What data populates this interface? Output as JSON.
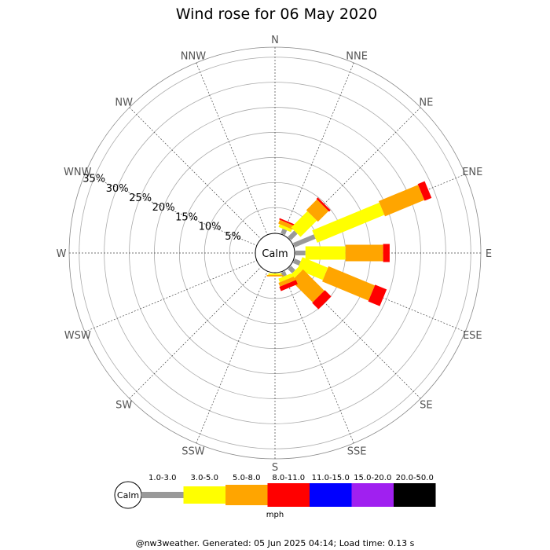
{
  "chart_data": {
    "type": "wind-rose",
    "title": "Wind rose for 06 May 2020",
    "directions": [
      "N",
      "NNE",
      "NE",
      "ENE",
      "E",
      "ESE",
      "SE",
      "SSE",
      "S",
      "SSW",
      "SW",
      "WSW",
      "W",
      "WNW",
      "NW",
      "NNW"
    ],
    "radial_ticks": [
      "5%",
      "10%",
      "15%",
      "20%",
      "25%",
      "30%",
      "35%"
    ],
    "radial_max_percent": 37,
    "center_label": "Calm",
    "unit": "mph",
    "speed_bins": [
      {
        "label": "1.0-3.0",
        "color": "#999999"
      },
      {
        "label": "3.0-5.0",
        "color": "#ffff00"
      },
      {
        "label": "5.0-8.0",
        "color": "#ffa500"
      },
      {
        "label": "8.0-11.0",
        "color": "#ff0000"
      },
      {
        "label": "11.0-15.0",
        "color": "#0000ff"
      },
      {
        "label": "15.0-20.0",
        "color": "#a020f0"
      },
      {
        "label": "20.0-50.0",
        "color": "#000000"
      }
    ],
    "series": [
      {
        "direction": "N",
        "values": [
          0.0,
          0.0,
          0.0,
          0.0,
          0,
          0,
          0
        ]
      },
      {
        "direction": "NNE",
        "values": [
          1.0,
          0.6,
          0.8,
          0.3,
          0,
          0,
          0
        ]
      },
      {
        "direction": "NE",
        "values": [
          1.8,
          4.6,
          3.0,
          0.4,
          0,
          0,
          0
        ]
      },
      {
        "direction": "ENE",
        "values": [
          4.5,
          14.5,
          8.5,
          1.5,
          0,
          0,
          0
        ]
      },
      {
        "direction": "E",
        "values": [
          2.0,
          8.0,
          7.5,
          1.3,
          0,
          0,
          0
        ]
      },
      {
        "direction": "ESE",
        "values": [
          1.3,
          5.5,
          10.0,
          2.5,
          0,
          0,
          0
        ]
      },
      {
        "direction": "SE",
        "values": [
          1.2,
          1.0,
          6.0,
          1.8,
          0,
          0,
          0
        ]
      },
      {
        "direction": "SSE",
        "values": [
          0.9,
          0.8,
          0.8,
          0.9,
          0,
          0,
          0
        ]
      },
      {
        "direction": "S",
        "values": [
          0.0,
          0.3,
          0.3,
          0.0,
          0,
          0,
          0
        ]
      },
      {
        "direction": "SSW",
        "values": [
          0,
          0,
          0,
          0,
          0,
          0,
          0
        ]
      },
      {
        "direction": "SW",
        "values": [
          0,
          0,
          0,
          0,
          0,
          0,
          0
        ]
      },
      {
        "direction": "WSW",
        "values": [
          0,
          0,
          0,
          0,
          0,
          0,
          0
        ]
      },
      {
        "direction": "W",
        "values": [
          0,
          0,
          0,
          0,
          0,
          0,
          0
        ]
      },
      {
        "direction": "WNW",
        "values": [
          0,
          0,
          0,
          0,
          0,
          0,
          0
        ]
      },
      {
        "direction": "NW",
        "values": [
          0,
          0,
          0,
          0,
          0,
          0,
          0
        ]
      },
      {
        "direction": "NNW",
        "values": [
          0,
          0,
          0,
          0,
          0,
          0,
          0
        ]
      }
    ]
  },
  "footer": "@nw3weather. Generated: 05 Jun 2025 04:14; Load time: 0.13 s"
}
